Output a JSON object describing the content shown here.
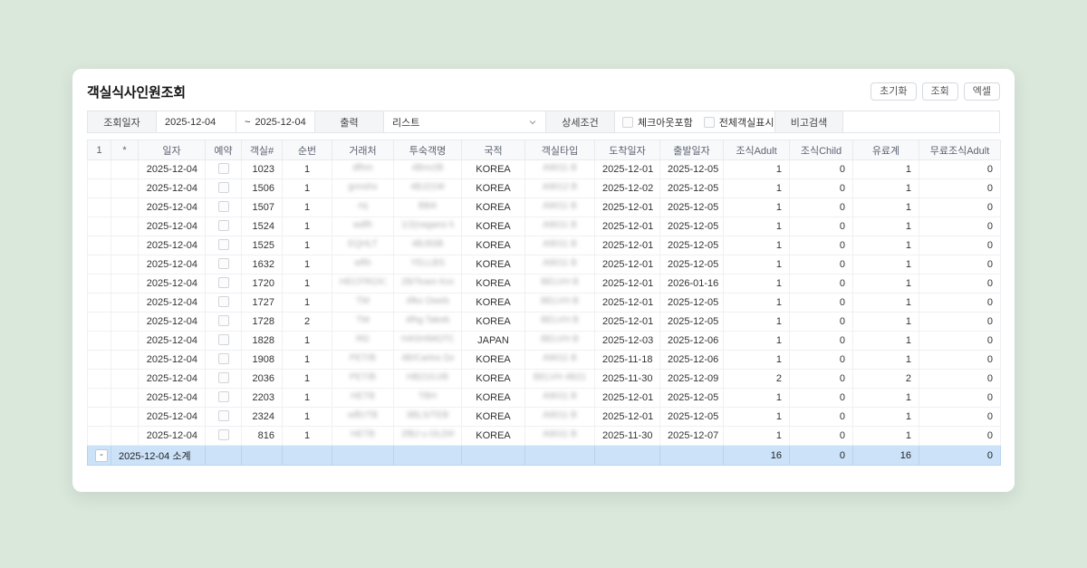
{
  "page": {
    "title": "객실식사인원조회"
  },
  "toolbar": {
    "buttons": [
      {
        "label": "초기화"
      },
      {
        "label": "조회"
      },
      {
        "label": "엑셀"
      }
    ]
  },
  "filter": {
    "date_label": "조회일자",
    "date_from": "2025-12-04",
    "range_separator": "~",
    "date_to": "2025-12-04",
    "output_label": "출력",
    "output_value": "리스트",
    "detail_label": "상세조건",
    "checkbox_checkout": "체크아웃포함",
    "checkbox_all_rooms": "전체객실표시",
    "remark_label": "비고검색",
    "remark_value": ""
  },
  "table": {
    "columns": [
      "1",
      "*",
      "일자",
      "예약",
      "객실#",
      "순번",
      "거래처",
      "투숙객명",
      "국적",
      "객실타입",
      "도착일자",
      "출발일자",
      "조식Adult",
      "조식Child",
      "유료계",
      "무료조식Adult"
    ],
    "rows": [
      {
        "date": "2025-12-04",
        "room": "1023",
        "seq": "1",
        "client": "dfhm",
        "guest": "4Bnv2B",
        "nation": "KOREA",
        "room_type": "A9011 B",
        "arrival": "2025-12-01",
        "departure": "2025-12-05",
        "bf_adult": "1",
        "bf_child": "0",
        "paid_total": "1",
        "free_bf_adult": "0"
      },
      {
        "date": "2025-12-04",
        "room": "1506",
        "seq": "1",
        "client": "gnnshs",
        "guest": "4BJ21W",
        "nation": "KOREA",
        "room_type": "A9012 B",
        "arrival": "2025-12-02",
        "departure": "2025-12-05",
        "bf_adult": "1",
        "bf_child": "0",
        "paid_total": "1",
        "free_bf_adult": "0"
      },
      {
        "date": "2025-12-04",
        "room": "1507",
        "seq": "1",
        "client": "mj",
        "guest": "BBA",
        "nation": "KOREA",
        "room_type": "A9011 B",
        "arrival": "2025-12-01",
        "departure": "2025-12-05",
        "bf_adult": "1",
        "bf_child": "0",
        "paid_total": "1",
        "free_bf_adult": "0"
      },
      {
        "date": "2025-12-04",
        "room": "1524",
        "seq": "1",
        "client": "wdfh",
        "guest": "1/2(nagano Mo...",
        "nation": "KOREA",
        "room_type": "A9011 B",
        "arrival": "2025-12-01",
        "departure": "2025-12-05",
        "bf_adult": "1",
        "bf_child": "0",
        "paid_total": "1",
        "free_bf_adult": "0"
      },
      {
        "date": "2025-12-04",
        "room": "1525",
        "seq": "1",
        "client": "EQHLT",
        "guest": "4BJ93B",
        "nation": "KOREA",
        "room_type": "A9011 B",
        "arrival": "2025-12-01",
        "departure": "2025-12-05",
        "bf_adult": "1",
        "bf_child": "0",
        "paid_total": "1",
        "free_bf_adult": "0"
      },
      {
        "date": "2025-12-04",
        "room": "1632",
        "seq": "1",
        "client": "wfth",
        "guest": "YELLBS",
        "nation": "KOREA",
        "room_type": "A9011 B",
        "arrival": "2025-12-01",
        "departure": "2025-12-05",
        "bf_adult": "1",
        "bf_child": "0",
        "paid_total": "1",
        "free_bf_adult": "0"
      },
      {
        "date": "2025-12-04",
        "room": "1720",
        "seq": "1",
        "client": "HECFROXXX",
        "guest": "2B/Team Kos...",
        "nation": "KOREA",
        "room_type": "BELVH B",
        "arrival": "2025-12-01",
        "departure": "2026-01-16",
        "bf_adult": "1",
        "bf_child": "0",
        "paid_total": "1",
        "free_bf_adult": "0"
      },
      {
        "date": "2025-12-04",
        "room": "1727",
        "seq": "1",
        "client": "TM",
        "guest": "4fks Oweb",
        "nation": "KOREA",
        "room_type": "BELVH B",
        "arrival": "2025-12-01",
        "departure": "2025-12-05",
        "bf_adult": "1",
        "bf_child": "0",
        "paid_total": "1",
        "free_bf_adult": "0"
      },
      {
        "date": "2025-12-04",
        "room": "1728",
        "seq": "2",
        "client": "TM",
        "guest": "4fhg Takeb",
        "nation": "KOREA",
        "room_type": "BELVH B",
        "arrival": "2025-12-01",
        "departure": "2025-12-05",
        "bf_adult": "1",
        "bf_child": "0",
        "paid_total": "1",
        "free_bf_adult": "0"
      },
      {
        "date": "2025-12-04",
        "room": "1828",
        "seq": "1",
        "client": "RD",
        "guest": "HASHIMOTO SUZ",
        "nation": "JAPAN",
        "room_type": "BELVH B",
        "arrival": "2025-12-03",
        "departure": "2025-12-06",
        "bf_adult": "1",
        "bf_child": "0",
        "paid_total": "1",
        "free_bf_adult": "0"
      },
      {
        "date": "2025-12-04",
        "room": "1908",
        "seq": "1",
        "client": "PET/B",
        "guest": "4B/Carlos Day",
        "nation": "KOREA",
        "room_type": "A9011 B",
        "arrival": "2025-11-18",
        "departure": "2025-12-06",
        "bf_adult": "1",
        "bf_child": "0",
        "paid_total": "1",
        "free_bf_adult": "0"
      },
      {
        "date": "2025-12-04",
        "room": "2036",
        "seq": "1",
        "client": "PET/B",
        "guest": "HB21/LVB",
        "nation": "KOREA",
        "room_type": "BELVH 4B21",
        "arrival": "2025-11-30",
        "departure": "2025-12-09",
        "bf_adult": "2",
        "bf_child": "0",
        "paid_total": "2",
        "free_bf_adult": "0"
      },
      {
        "date": "2025-12-04",
        "room": "2203",
        "seq": "1",
        "client": "HETB",
        "guest": "TBH",
        "nation": "KOREA",
        "room_type": "A9011 B",
        "arrival": "2025-12-01",
        "departure": "2025-12-05",
        "bf_adult": "1",
        "bf_child": "0",
        "paid_total": "1",
        "free_bf_adult": "0"
      },
      {
        "date": "2025-12-04",
        "room": "2324",
        "seq": "1",
        "client": "wfErTB",
        "guest": "3BLS/TEB",
        "nation": "KOREA",
        "room_type": "A9011 B",
        "arrival": "2025-12-01",
        "departure": "2025-12-05",
        "bf_adult": "1",
        "bf_child": "0",
        "paid_total": "1",
        "free_bf_adult": "0"
      },
      {
        "date": "2025-12-04",
        "room": "816",
        "seq": "1",
        "client": "HETB",
        "guest": "2fBJ u OLDW",
        "nation": "KOREA",
        "room_type": "A9011 B",
        "arrival": "2025-11-30",
        "departure": "2025-12-07",
        "bf_adult": "1",
        "bf_child": "0",
        "paid_total": "1",
        "free_bf_adult": "0"
      }
    ],
    "summary": {
      "collapse_icon": "-",
      "label": "2025-12-04 소계",
      "bf_adult": "16",
      "bf_child": "0",
      "paid_total": "16",
      "free_bf_adult": "0"
    }
  },
  "colors": {
    "page_bg": "#dae7db",
    "summary_row_bg": "#cbe2f9",
    "table_header_bg": "#f8f9fb",
    "filter_label_bg": "#f4f5f7"
  }
}
